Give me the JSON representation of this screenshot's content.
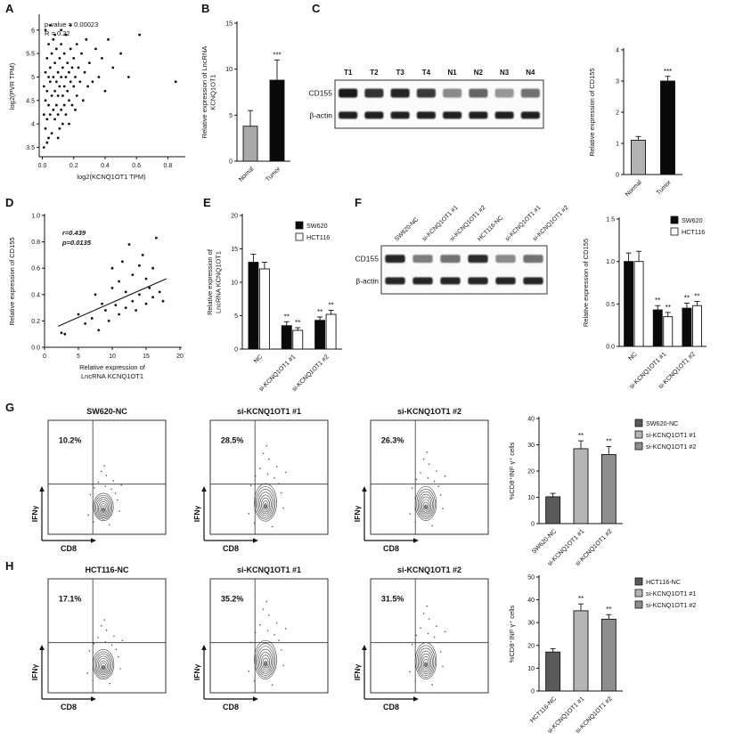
{
  "panels": {
    "a": "A",
    "b": "B",
    "c": "C",
    "d": "D",
    "e": "E",
    "f": "F",
    "g": "G",
    "h": "H"
  },
  "chart_data": [
    {
      "id": "A-scatter",
      "type": "scatter",
      "xlabel": "log2(KCNQ1OT1 TPM)",
      "ylabel": "log2(PVR TPM)",
      "xlim": [
        -0.02,
        0.9
      ],
      "ylim": [
        3.3,
        6.3
      ],
      "xticks": [
        "0.0",
        "0.2",
        "0.4",
        "0.6",
        "0.8"
      ],
      "yticks": [
        "3.5",
        "4",
        "4.5",
        "5",
        "5.5",
        "6"
      ],
      "annotations": [
        "p-value = 0.00023",
        "R = 0.22"
      ],
      "points": [
        [
          0.01,
          4.2
        ],
        [
          0.01,
          4.8
        ],
        [
          0.01,
          3.5
        ],
        [
          0.02,
          5.1
        ],
        [
          0.02,
          4.5
        ],
        [
          0.02,
          3.9
        ],
        [
          0.02,
          6.0
        ],
        [
          0.03,
          5.4
        ],
        [
          0.03,
          4.1
        ],
        [
          0.03,
          4.7
        ],
        [
          0.03,
          3.6
        ],
        [
          0.04,
          5.0
        ],
        [
          0.04,
          4.4
        ],
        [
          0.04,
          5.7
        ],
        [
          0.04,
          3.7
        ],
        [
          0.05,
          4.9
        ],
        [
          0.05,
          4.2
        ],
        [
          0.05,
          5.2
        ],
        [
          0.05,
          6.1
        ],
        [
          0.06,
          4.6
        ],
        [
          0.06,
          5.5
        ],
        [
          0.06,
          3.8
        ],
        [
          0.07,
          4.3
        ],
        [
          0.07,
          5.0
        ],
        [
          0.07,
          5.8
        ],
        [
          0.08,
          4.7
        ],
        [
          0.08,
          4.1
        ],
        [
          0.08,
          5.3
        ],
        [
          0.08,
          5.9
        ],
        [
          0.09,
          4.9
        ],
        [
          0.09,
          4.4
        ],
        [
          0.09,
          5.6
        ],
        [
          0.1,
          4.2
        ],
        [
          0.1,
          5.1
        ],
        [
          0.1,
          4.6
        ],
        [
          0.1,
          3.7
        ],
        [
          0.11,
          5.4
        ],
        [
          0.11,
          4.8
        ],
        [
          0.11,
          3.9
        ],
        [
          0.12,
          5.0
        ],
        [
          0.12,
          4.3
        ],
        [
          0.12,
          5.7
        ],
        [
          0.12,
          6.0
        ],
        [
          0.13,
          4.6
        ],
        [
          0.13,
          5.2
        ],
        [
          0.13,
          4.0
        ],
        [
          0.14,
          4.8
        ],
        [
          0.14,
          5.5
        ],
        [
          0.14,
          4.4
        ],
        [
          0.15,
          5.0
        ],
        [
          0.15,
          4.2
        ],
        [
          0.15,
          5.9
        ],
        [
          0.16,
          4.7
        ],
        [
          0.16,
          5.3
        ],
        [
          0.17,
          4.5
        ],
        [
          0.17,
          5.1
        ],
        [
          0.17,
          4.0
        ],
        [
          0.18,
          4.9
        ],
        [
          0.18,
          5.6
        ],
        [
          0.18,
          6.1
        ],
        [
          0.19,
          4.4
        ],
        [
          0.19,
          5.2
        ],
        [
          0.2,
          4.8
        ],
        [
          0.2,
          5.4
        ],
        [
          0.21,
          4.3
        ],
        [
          0.21,
          5.0
        ],
        [
          0.22,
          5.7
        ],
        [
          0.22,
          4.6
        ],
        [
          0.23,
          5.2
        ],
        [
          0.24,
          4.9
        ],
        [
          0.25,
          5.5
        ],
        [
          0.26,
          4.5
        ],
        [
          0.27,
          5.1
        ],
        [
          0.28,
          5.8
        ],
        [
          0.29,
          4.8
        ],
        [
          0.3,
          5.3
        ],
        [
          0.32,
          4.9
        ],
        [
          0.34,
          5.6
        ],
        [
          0.36,
          5.0
        ],
        [
          0.38,
          5.4
        ],
        [
          0.4,
          4.7
        ],
        [
          0.42,
          5.8
        ],
        [
          0.45,
          5.2
        ],
        [
          0.5,
          5.5
        ],
        [
          0.55,
          5.0
        ],
        [
          0.62,
          5.9
        ],
        [
          0.85,
          4.9
        ]
      ]
    },
    {
      "id": "B-bar",
      "type": "bar",
      "ylabel": [
        "Relative expression of LncRNA",
        "KCNQ1OT1"
      ],
      "categories": [
        "Nomal",
        "Tumor"
      ],
      "series": [
        {
          "colors": [
            "#a9a9a9",
            "#0a0a0a"
          ],
          "values": [
            3.8,
            8.8
          ],
          "errors": [
            1.7,
            2.2
          ]
        }
      ],
      "ylim": [
        0,
        15
      ],
      "yticks": [
        "0",
        "5",
        "10",
        "15"
      ],
      "sig": [
        {
          "cat": 1,
          "text": "***"
        }
      ]
    },
    {
      "id": "C-bar",
      "type": "bar",
      "ylabel": "Relative expression of CD155",
      "categories": [
        "Normal",
        "Tumor"
      ],
      "series": [
        {
          "colors": [
            "#b3b3b3",
            "#0a0a0a"
          ],
          "values": [
            1.1,
            3.0
          ],
          "errors": [
            0.12,
            0.15
          ]
        }
      ],
      "ylim": [
        0,
        4
      ],
      "yticks": [
        "0",
        "1",
        "2",
        "3",
        "4"
      ],
      "sig": [
        {
          "cat": 1,
          "text": "***"
        }
      ]
    },
    {
      "id": "D-scatter",
      "type": "scatter",
      "xlabel": [
        "Relative expression of",
        "LncRNA KCNQ1OT1"
      ],
      "ylabel": "Relative expression of CD155",
      "xlim": [
        0,
        20
      ],
      "ylim": [
        0,
        1.0
      ],
      "xticks": [
        "0",
        "5",
        "10",
        "15",
        "20"
      ],
      "yticks": [
        "0.0",
        "0.2",
        "0.4",
        "0.6",
        "0.8",
        "1.0"
      ],
      "annotations": [
        "r=0.439",
        "p=0.0135"
      ],
      "fit_line": {
        "x": [
          2,
          18
        ],
        "y": [
          0.16,
          0.52
        ]
      },
      "points": [
        [
          2.5,
          0.11
        ],
        [
          3,
          0.1
        ],
        [
          5,
          0.25
        ],
        [
          6,
          0.18
        ],
        [
          7,
          0.22
        ],
        [
          7.5,
          0.4
        ],
        [
          8,
          0.13
        ],
        [
          8.5,
          0.33
        ],
        [
          9,
          0.28
        ],
        [
          9.5,
          0.2
        ],
        [
          10,
          0.45
        ],
        [
          10,
          0.6
        ],
        [
          10.5,
          0.32
        ],
        [
          11,
          0.25
        ],
        [
          11,
          0.5
        ],
        [
          11.5,
          0.65
        ],
        [
          12,
          0.3
        ],
        [
          12,
          0.42
        ],
        [
          12.5,
          0.78
        ],
        [
          13,
          0.35
        ],
        [
          13,
          0.55
        ],
        [
          13.5,
          0.28
        ],
        [
          14,
          0.62
        ],
        [
          14,
          0.4
        ],
        [
          14.5,
          0.7
        ],
        [
          15,
          0.33
        ],
        [
          15,
          0.52
        ],
        [
          15.5,
          0.45
        ],
        [
          16,
          0.38
        ],
        [
          16,
          0.6
        ],
        [
          16.5,
          0.83
        ],
        [
          17,
          0.42
        ],
        [
          17.5,
          0.35
        ]
      ]
    },
    {
      "id": "E-bar",
      "type": "bar",
      "ylabel": [
        "Relative expression of",
        "LncRNA KCNQ1OT1"
      ],
      "categories": [
        "NC",
        "si-KCNQ1OT1 #1",
        "si-KCNQ1OT1 #2"
      ],
      "series": [
        {
          "name": "SW620",
          "color": "#0a0a0a",
          "values": [
            13,
            3.5,
            4.3
          ],
          "errors": [
            1.2,
            0.6,
            0.5
          ]
        },
        {
          "name": "HCT116",
          "color": "#ffffff",
          "values": [
            12,
            2.8,
            5.2
          ],
          "errors": [
            1.0,
            0.4,
            0.6
          ]
        }
      ],
      "ylim": [
        0,
        20
      ],
      "yticks": [
        "0",
        "5",
        "10",
        "15",
        "20"
      ],
      "legend": true,
      "sig": [
        {
          "cat": 1,
          "series": 0,
          "text": "**"
        },
        {
          "cat": 1,
          "series": 1,
          "text": "**"
        },
        {
          "cat": 2,
          "series": 0,
          "text": "**"
        },
        {
          "cat": 2,
          "series": 1,
          "text": "**"
        }
      ]
    },
    {
      "id": "F-bar",
      "type": "bar",
      "ylabel": "Relative expression of CD155",
      "categories": [
        "NC",
        "si-KCNQ1OT1 #1",
        "si-KCNQ1OT1 #2"
      ],
      "series": [
        {
          "name": "SW620",
          "color": "#0a0a0a",
          "values": [
            1.0,
            0.43,
            0.45
          ],
          "errors": [
            0.1,
            0.05,
            0.06
          ]
        },
        {
          "name": "HCT116",
          "color": "#ffffff",
          "values": [
            1.0,
            0.35,
            0.48
          ],
          "errors": [
            0.12,
            0.05,
            0.05
          ]
        }
      ],
      "ylim": [
        0,
        1.5
      ],
      "yticks": [
        "0.0",
        "0.5",
        "1.0",
        "1.5"
      ],
      "legend": true,
      "sig": [
        {
          "cat": 1,
          "series": 0,
          "text": "**"
        },
        {
          "cat": 1,
          "series": 1,
          "text": "**"
        },
        {
          "cat": 2,
          "series": 0,
          "text": "**"
        },
        {
          "cat": 2,
          "series": 1,
          "text": "**"
        }
      ]
    },
    {
      "id": "G-flow-1",
      "type": "flow_contour",
      "title": "SW620-NC",
      "percent": "10.2%",
      "xlabel": "CD8",
      "ylabel": "IFNγ",
      "gate": {
        "vx": 0.38,
        "hy": 0.56
      },
      "blob": {
        "cx": 0.47,
        "cy": 0.76,
        "rx": 0.085,
        "ry": 0.12
      }
    },
    {
      "id": "G-flow-2",
      "type": "flow_contour",
      "title": "si-KCNQ1OT1 #1",
      "percent": "28.5%",
      "xlabel": "CD8",
      "ylabel": "IFNγ",
      "gate": {
        "vx": 0.38,
        "hy": 0.56
      },
      "blob": {
        "cx": 0.47,
        "cy": 0.72,
        "rx": 0.095,
        "ry": 0.165
      }
    },
    {
      "id": "G-flow-3",
      "type": "flow_contour",
      "title": "si-KCNQ1OT1 #2",
      "percent": "26.3%",
      "xlabel": "CD8",
      "ylabel": "IFNγ",
      "gate": {
        "vx": 0.38,
        "hy": 0.56
      },
      "blob": {
        "cx": 0.47,
        "cy": 0.73,
        "rx": 0.09,
        "ry": 0.15
      }
    },
    {
      "id": "G-bar",
      "type": "bar",
      "ylabel": "%CD8⁺INF γ⁺ cells",
      "categories": [
        "SW620-NC",
        "si-KCNQ1OT1 #1",
        "si-KCNQ1OT1 #2"
      ],
      "series": [
        {
          "colors": [
            "#5a5a5a",
            "#b5b5b5",
            "#8e8e8e"
          ],
          "values": [
            10.2,
            28.5,
            26.3
          ],
          "errors": [
            1.3,
            3.0,
            3.0
          ]
        }
      ],
      "ylim": [
        0,
        40
      ],
      "yticks": [
        "0",
        "10",
        "20",
        "30",
        "40"
      ],
      "legend": {
        "items": [
          {
            "label": "SW620-NC",
            "color": "#5a5a5a"
          },
          {
            "label": "si-KCNQ1OT1 #1",
            "color": "#b5b5b5"
          },
          {
            "label": "si-KCNQ1OT1 #2",
            "color": "#8e8e8e"
          }
        ]
      },
      "sig": [
        {
          "cat": 1,
          "text": "**"
        },
        {
          "cat": 2,
          "text": "**"
        }
      ]
    },
    {
      "id": "H-flow-1",
      "type": "flow_contour",
      "title": "HCT116-NC",
      "percent": "17.1%",
      "xlabel": "CD8",
      "ylabel": "IFNγ",
      "gate": {
        "vx": 0.38,
        "hy": 0.56
      },
      "blob": {
        "cx": 0.47,
        "cy": 0.75,
        "rx": 0.09,
        "ry": 0.13
      }
    },
    {
      "id": "H-flow-2",
      "type": "flow_contour",
      "title": "si-KCNQ1OT1 #1",
      "percent": "35.2%",
      "xlabel": "CD8",
      "ylabel": "IFNγ",
      "gate": {
        "vx": 0.38,
        "hy": 0.56
      },
      "blob": {
        "cx": 0.47,
        "cy": 0.71,
        "rx": 0.095,
        "ry": 0.17
      }
    },
    {
      "id": "H-flow-3",
      "type": "flow_contour",
      "title": "si-KCNQ1OT1 #2",
      "percent": "31.5%",
      "xlabel": "CD8",
      "ylabel": "IFNγ",
      "gate": {
        "vx": 0.38,
        "hy": 0.56
      },
      "blob": {
        "cx": 0.47,
        "cy": 0.72,
        "rx": 0.09,
        "ry": 0.16
      }
    },
    {
      "id": "H-bar",
      "type": "bar",
      "ylabel": "%CD8⁺INF γ⁺ cells",
      "categories": [
        "HCT116-NC",
        "si-KCNQ1OT1 #1",
        "si-KCNQ1OT1 #2"
      ],
      "series": [
        {
          "colors": [
            "#5a5a5a",
            "#b5b5b5",
            "#8e8e8e"
          ],
          "values": [
            17.1,
            35.2,
            31.5
          ],
          "errors": [
            1.5,
            3.0,
            2.0
          ]
        }
      ],
      "ylim": [
        0,
        50
      ],
      "yticks": [
        "0",
        "10",
        "20",
        "30",
        "40",
        "50"
      ],
      "legend": {
        "items": [
          {
            "label": "HCT116-NC",
            "color": "#5a5a5a"
          },
          {
            "label": "si-KCNQ1OT1 #1",
            "color": "#b5b5b5"
          },
          {
            "label": "si-KCNQ1OT1 #2",
            "color": "#8e8e8e"
          }
        ]
      },
      "sig": [
        {
          "cat": 1,
          "text": "**"
        },
        {
          "cat": 2,
          "text": "**"
        }
      ]
    }
  ],
  "blots": [
    {
      "id": "C-blot",
      "rotate_lanes": false,
      "lanes": [
        "T1",
        "T2",
        "T3",
        "T4",
        "N1",
        "N2",
        "N3",
        "N4"
      ],
      "rows": [
        {
          "label": "CD155",
          "band_intensity": [
            0.95,
            0.85,
            0.9,
            0.82,
            0.45,
            0.6,
            0.4,
            0.55
          ],
          "band_h": 10
        },
        {
          "label": "β-actin",
          "band_intensity": [
            0.92,
            0.92,
            0.92,
            0.92,
            0.92,
            0.92,
            0.92,
            0.92
          ],
          "band_h": 8
        }
      ]
    },
    {
      "id": "F-blot",
      "rotate_lanes": true,
      "lanes": [
        "SW620-NC",
        "si-KCNQ1OT1 #1",
        "si-KCNQ1OT1 #2",
        "HCT116-NC",
        "si-KCNQ1OT1 #1",
        "si-KCNQ1OT1 #2"
      ],
      "rows": [
        {
          "label": "CD155",
          "band_intensity": [
            0.9,
            0.5,
            0.55,
            0.88,
            0.45,
            0.55
          ],
          "band_h": 9
        },
        {
          "label": "β-actin",
          "band_intensity": [
            0.9,
            0.9,
            0.9,
            0.9,
            0.9,
            0.9
          ],
          "band_h": 8
        }
      ]
    }
  ]
}
